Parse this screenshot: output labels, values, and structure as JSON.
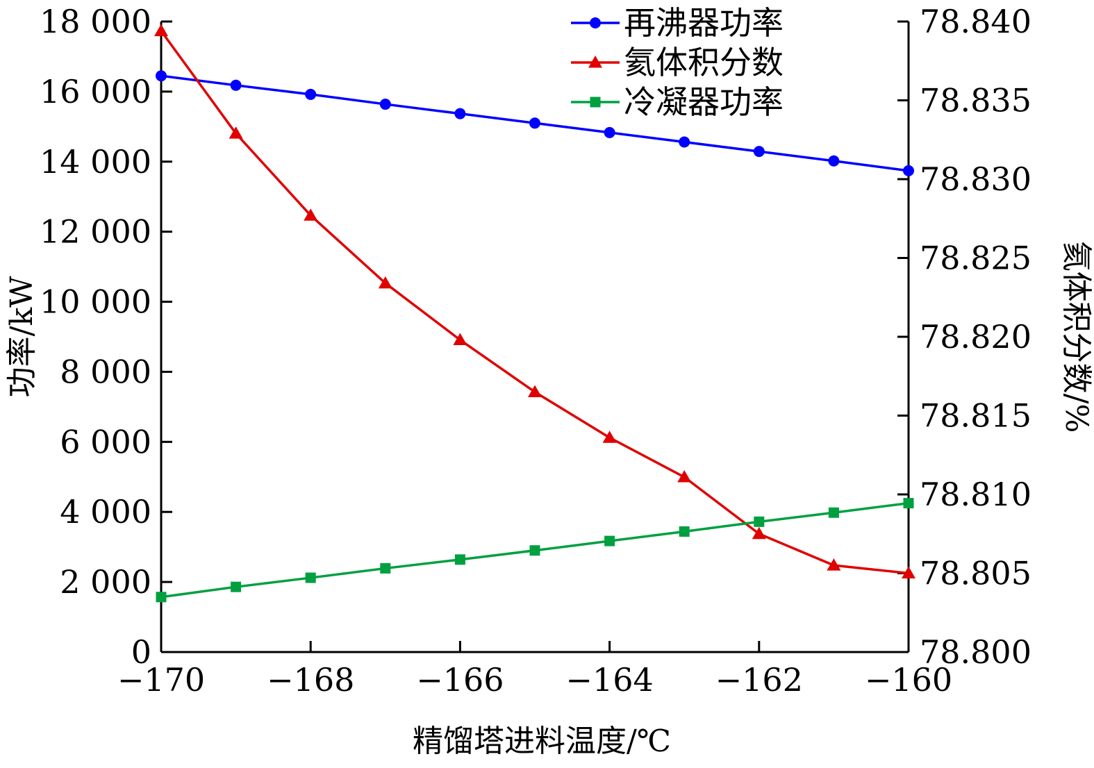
{
  "chart_data": {
    "type": "line",
    "title": "",
    "xlabel": "精馏塔进料温度/℃",
    "ylabel_left": "功率/kW",
    "ylabel_right": "氦体积分数/%",
    "x": [
      -170,
      -169,
      -168,
      -167,
      -166,
      -165,
      -164,
      -163,
      -162,
      -161,
      -160
    ],
    "xlim": [
      -170,
      -160
    ],
    "ylim_left": [
      0,
      18000
    ],
    "ylim_right": [
      78.8,
      78.84
    ],
    "x_ticks": [
      -170,
      -168,
      -166,
      -164,
      -162,
      -160
    ],
    "x_tick_labels": [
      "−170",
      "−168",
      "−166",
      "−164",
      "−162",
      "−160"
    ],
    "left_ticks": [
      0,
      2000,
      4000,
      6000,
      8000,
      10000,
      12000,
      14000,
      16000,
      18000
    ],
    "left_tick_labels": [
      "0",
      "2 000",
      "4 000",
      "6 000",
      "8 000",
      "10 000",
      "12 000",
      "14 000",
      "16 000",
      "18 000"
    ],
    "right_ticks": [
      78.8,
      78.805,
      78.81,
      78.815,
      78.82,
      78.825,
      78.83,
      78.835,
      78.84
    ],
    "right_tick_labels": [
      "78.800",
      "78.805",
      "78.810",
      "78.815",
      "78.820",
      "78.825",
      "78.830",
      "78.835",
      "78.840"
    ],
    "grid": false,
    "legend_position": "top-right",
    "series": [
      {
        "name": "再沸器功率",
        "axis": "left",
        "color": "#0000ff",
        "marker": "circle",
        "values": [
          16450,
          16180,
          15920,
          15640,
          15370,
          15100,
          14830,
          14560,
          14290,
          14020,
          13740
        ]
      },
      {
        "name": "氦体积分数",
        "axis": "right",
        "color": "#e00000",
        "marker": "triangle",
        "values": [
          78.8394,
          78.8329,
          78.8277,
          78.8234,
          78.8198,
          78.8165,
          78.8136,
          78.8111,
          78.8075,
          78.8055,
          78.805
        ]
      },
      {
        "name": "冷凝器功率",
        "axis": "left",
        "color": "#00a040",
        "marker": "square",
        "values": [
          1570,
          1860,
          2120,
          2390,
          2640,
          2900,
          3170,
          3440,
          3720,
          3980,
          4250
        ]
      }
    ]
  }
}
